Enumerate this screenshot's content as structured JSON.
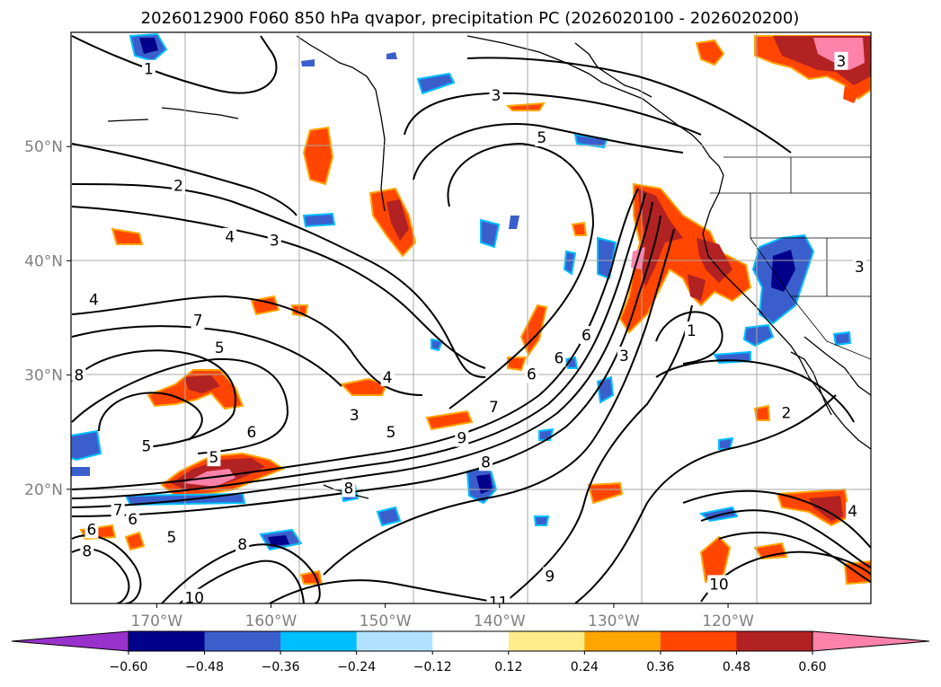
{
  "title": "2026012900 F060 850 hPa qvapor, precipitation PC (2026020100 - 2026020200)",
  "map": {
    "lon_range": [
      -177.5,
      -107.5
    ],
    "lat_range": [
      10,
      60
    ],
    "lat_ticks": [
      {
        "value": 20,
        "label": "20°N"
      },
      {
        "value": 30,
        "label": "30°N"
      },
      {
        "value": 40,
        "label": "40°N"
      },
      {
        "value": 50,
        "label": "50°N"
      }
    ],
    "lon_ticks": [
      {
        "value": -170,
        "label": "170°W"
      },
      {
        "value": -160,
        "label": "160°W"
      },
      {
        "value": -150,
        "label": "150°W"
      },
      {
        "value": -140,
        "label": "140°W"
      },
      {
        "value": -130,
        "label": "130°W"
      },
      {
        "value": -120,
        "label": "120°W"
      }
    ],
    "grid": true
  },
  "colorbar": {
    "levels": [
      "-0.60",
      "-0.48",
      "-0.36",
      "-0.24",
      "-0.12",
      "0.12",
      "0.24",
      "0.36",
      "0.48",
      "0.60"
    ],
    "colors": [
      "#9932cc",
      "#00008b",
      "#3a5fcd",
      "#00bfff",
      "#b0e2ff",
      "#ffffff",
      "#ffec8b",
      "#ffa500",
      "#ff4500",
      "#b22222",
      "#ff82ab"
    ],
    "extend": "both"
  },
  "contour_labels": [
    {
      "text": "1",
      "lon": -170.7,
      "lat": 56.8
    },
    {
      "text": "3",
      "lon": -110.1,
      "lat": 57.5
    },
    {
      "text": "3",
      "lon": -140.3,
      "lat": 54.5
    },
    {
      "text": "5",
      "lon": -136.3,
      "lat": 50.8
    },
    {
      "text": "2",
      "lon": -168.1,
      "lat": 46.6
    },
    {
      "text": "4",
      "lon": -163.6,
      "lat": 42.1
    },
    {
      "text": "3",
      "lon": -159.7,
      "lat": 41.8
    },
    {
      "text": "4",
      "lon": -175.5,
      "lat": 36.6
    },
    {
      "text": "7",
      "lon": -166.4,
      "lat": 34.8
    },
    {
      "text": "5",
      "lon": -164.5,
      "lat": 32.4
    },
    {
      "text": "8",
      "lon": -176.8,
      "lat": 30.0
    },
    {
      "text": "4",
      "lon": -149.8,
      "lat": 29.8
    },
    {
      "text": "6",
      "lon": -137.2,
      "lat": 30.1
    },
    {
      "text": "6",
      "lon": -134.8,
      "lat": 31.5
    },
    {
      "text": "6",
      "lon": -132.4,
      "lat": 33.5
    },
    {
      "text": "3",
      "lon": -129.1,
      "lat": 31.7
    },
    {
      "text": "1",
      "lon": -123.2,
      "lat": 33.9
    },
    {
      "text": "3",
      "lon": -152.7,
      "lat": 26.5
    },
    {
      "text": "5",
      "lon": -149.5,
      "lat": 25.0
    },
    {
      "text": "7",
      "lon": -140.5,
      "lat": 27.2
    },
    {
      "text": "9",
      "lon": -143.3,
      "lat": 24.5
    },
    {
      "text": "2",
      "lon": -114.9,
      "lat": 26.7
    },
    {
      "text": "5",
      "lon": -170.9,
      "lat": 23.8
    },
    {
      "text": "6",
      "lon": -161.7,
      "lat": 25.0
    },
    {
      "text": "5",
      "lon": -165.0,
      "lat": 22.8
    },
    {
      "text": "8",
      "lon": -141.2,
      "lat": 22.4
    },
    {
      "text": "8",
      "lon": -153.2,
      "lat": 20.1
    },
    {
      "text": "7",
      "lon": -173.4,
      "lat": 18.2
    },
    {
      "text": "6",
      "lon": -172.1,
      "lat": 17.4
    },
    {
      "text": "6",
      "lon": -175.7,
      "lat": 16.5
    },
    {
      "text": "8",
      "lon": -176.1,
      "lat": 14.6
    },
    {
      "text": "5",
      "lon": -168.7,
      "lat": 15.8
    },
    {
      "text": "8",
      "lon": -162.5,
      "lat": 15.2
    },
    {
      "text": "9",
      "lon": -135.6,
      "lat": 12.4
    },
    {
      "text": "10",
      "lon": -120.8,
      "lat": 11.7
    },
    {
      "text": "10",
      "lon": -166.7,
      "lat": 10.5
    },
    {
      "text": "11",
      "lon": -140.1,
      "lat": 10.1
    },
    {
      "text": "4",
      "lon": -109.1,
      "lat": 18.1
    },
    {
      "text": "3",
      "lon": -108.5,
      "lat": 39.5
    }
  ]
}
